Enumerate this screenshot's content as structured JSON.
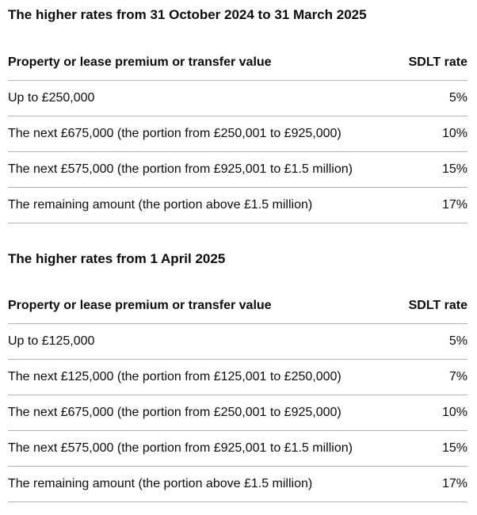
{
  "page": {
    "background_color": "#ffffff",
    "text_color": "#0b0c0c",
    "table_border_color": "#b1b4b6"
  },
  "sections": [
    {
      "heading": "The higher rates from 31 October 2024 to 31 March 2025",
      "table": {
        "columns": [
          "Property or lease premium or transfer value",
          "SDLT rate"
        ],
        "rows": [
          {
            "band": "Up to £250,000",
            "rate": "5%"
          },
          {
            "band": "The next £675,000 (the portion from £250,001 to £925,000)",
            "rate": "10%"
          },
          {
            "band": "The next £575,000 (the portion from £925,001 to £1.5 million)",
            "rate": "15%"
          },
          {
            "band": "The remaining amount (the portion above £1.5 million)",
            "rate": "17%"
          }
        ]
      }
    },
    {
      "heading": "The higher rates from 1 April 2025",
      "table": {
        "columns": [
          "Property or lease premium or transfer value",
          "SDLT rate"
        ],
        "rows": [
          {
            "band": "Up to £125,000",
            "rate": "5%"
          },
          {
            "band": "The next £125,000 (the portion from £125,001 to £250,000)",
            "rate": "7%"
          },
          {
            "band": "The next £675,000 (the portion from £250,001 to £925,000)",
            "rate": "10%"
          },
          {
            "band": "The next £575,000 (the portion from £925,001 to £1.5 million)",
            "rate": "15%"
          },
          {
            "band": "The remaining amount (the portion above £1.5 million)",
            "rate": "17%"
          }
        ]
      }
    }
  ]
}
